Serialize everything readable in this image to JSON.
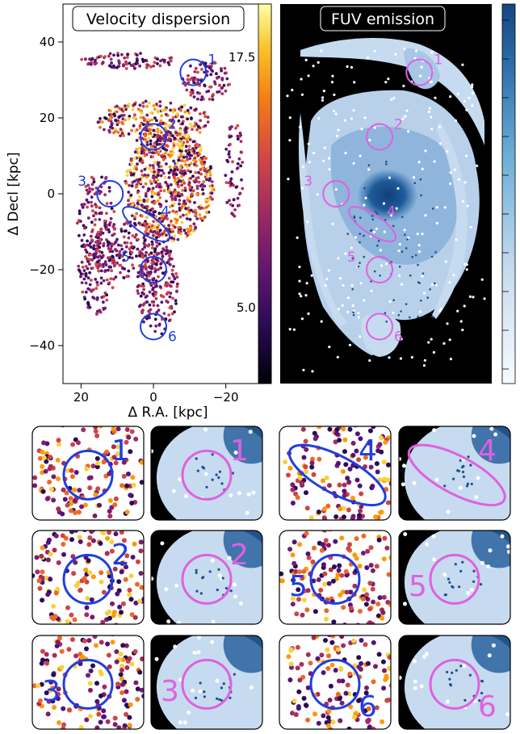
{
  "chart_data": {
    "type": "heatmap",
    "panels": [
      {
        "id": "velocity",
        "title": "Velocity dispersion",
        "xlabel": "Δ R.A. [kpc]",
        "ylabel": "Δ Decl [kpc]",
        "xlim": [
          25,
          -29
        ],
        "ylim": [
          -50,
          50
        ],
        "xticks": [
          20,
          0,
          -20
        ],
        "yticks": [
          40,
          20,
          0,
          -20,
          -40
        ],
        "colorbar_ticks": [
          "17.5",
          "5.0"
        ],
        "colormap": "inferno",
        "circle_color": "#1f3ee0"
      },
      {
        "id": "fuv",
        "title": "FUV emission",
        "colormap": "blues",
        "circle_color": "#e060e0"
      }
    ],
    "regions": [
      {
        "label": "1",
        "x": -11,
        "y": 32
      },
      {
        "label": "2",
        "x": 0,
        "y": 15
      },
      {
        "label": "3",
        "x": 12,
        "y": 0
      },
      {
        "label": "4",
        "x": 2,
        "y": -8
      },
      {
        "label": "5",
        "x": 0,
        "y": -20
      },
      {
        "label": "6",
        "x": 0,
        "y": -35
      }
    ],
    "zoom_panels": [
      {
        "label": "1"
      },
      {
        "label": "1"
      },
      {
        "label": "4"
      },
      {
        "label": "4"
      },
      {
        "label": "2"
      },
      {
        "label": "2"
      },
      {
        "label": "5"
      },
      {
        "label": "5"
      },
      {
        "label": "3"
      },
      {
        "label": "3"
      },
      {
        "label": "6"
      },
      {
        "label": "6"
      }
    ]
  }
}
